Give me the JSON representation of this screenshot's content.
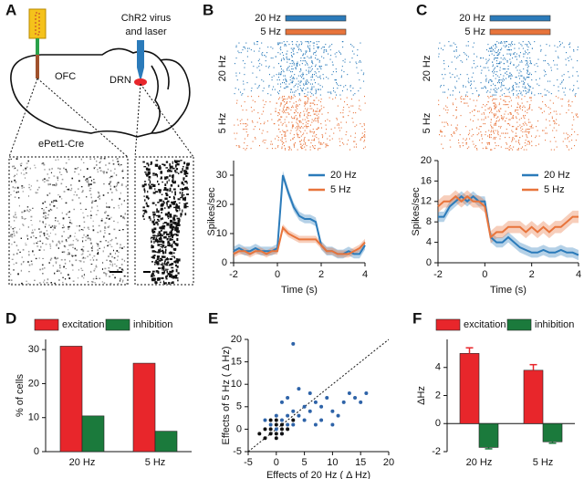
{
  "panel_labels": [
    "A",
    "B",
    "C",
    "D",
    "E",
    "F"
  ],
  "diagram": {
    "probe_label": "OFC",
    "virus_label": [
      "ChR2 virus",
      "and laser"
    ],
    "region_label": "DRN",
    "mouse_line": "ePet1-Cre"
  },
  "chart_data": [
    {
      "type": "line",
      "xlabel": "Time (s)",
      "ylabel": "Spikes/sec",
      "x": [
        -2,
        -1.75,
        -1.5,
        -1.25,
        -1,
        -0.75,
        -0.5,
        -0.25,
        0,
        0.25,
        0.5,
        0.75,
        1,
        1.25,
        1.5,
        1.75,
        2,
        2.25,
        2.5,
        2.75,
        3,
        3.25,
        3.5,
        3.75,
        4
      ],
      "xlim": [
        -2,
        4
      ],
      "xticks": [
        -2,
        0,
        2,
        4
      ],
      "ylim": [
        0,
        35
      ],
      "yticks": [
        0,
        10,
        20,
        30
      ],
      "series": [
        {
          "name": "20 Hz",
          "color": "#2b7bba",
          "error": 1.5,
          "values": [
            4,
            5,
            4,
            4,
            5,
            4,
            4,
            4,
            5,
            30,
            24,
            19,
            16,
            15,
            15,
            14,
            6,
            4,
            4,
            3,
            3,
            4,
            3,
            3,
            6
          ]
        },
        {
          "name": "5 Hz",
          "color": "#e8743b",
          "error": 1.2,
          "values": [
            3,
            4,
            4,
            3,
            4,
            4,
            3,
            4,
            4,
            12,
            10,
            9,
            8,
            8,
            8,
            8,
            6,
            4,
            4,
            3,
            3,
            3,
            4,
            5,
            7
          ]
        }
      ]
    },
    {
      "type": "line",
      "xlabel": "Time (s)",
      "ylabel": "Spikes/sec",
      "x": [
        -2,
        -1.75,
        -1.5,
        -1.25,
        -1,
        -0.75,
        -0.5,
        -0.25,
        0,
        0.25,
        0.5,
        0.75,
        1,
        1.25,
        1.5,
        1.75,
        2,
        2.25,
        2.5,
        2.75,
        3,
        3.25,
        3.5,
        3.75,
        4
      ],
      "xlim": [
        -2,
        4
      ],
      "xticks": [
        -2,
        0,
        2,
        4
      ],
      "ylim": [
        0,
        20
      ],
      "yticks": [
        0,
        4,
        8,
        12,
        16,
        20
      ],
      "series": [
        {
          "name": "20 Hz",
          "color": "#2b7bba",
          "error": 1,
          "values": [
            9,
            9,
            11,
            12,
            13,
            12,
            13,
            12,
            12,
            5,
            4,
            4,
            5,
            4,
            3,
            2.5,
            2,
            2,
            2.5,
            2,
            2,
            2.5,
            2,
            2,
            1.5
          ]
        },
        {
          "name": "5 Hz",
          "color": "#e8743b",
          "error": 1.2,
          "values": [
            11,
            12,
            12,
            13,
            12,
            13,
            12,
            12,
            11,
            5,
            6,
            6,
            7,
            7,
            7,
            6,
            7,
            6,
            7,
            6,
            7,
            7,
            8,
            9,
            9
          ]
        }
      ]
    },
    {
      "type": "bar",
      "ylabel": "% of cells",
      "categories": [
        "20 Hz",
        "5 Hz"
      ],
      "ylim": [
        0,
        33
      ],
      "yticks": [
        0,
        10,
        20,
        30
      ],
      "series": [
        {
          "name": "excitation",
          "color": "#e8262b",
          "values": [
            31,
            26
          ]
        },
        {
          "name": "inhibition",
          "color": "#1b7a3c",
          "values": [
            10.5,
            6
          ]
        }
      ]
    },
    {
      "type": "scatter",
      "xlabel": "Effects of 20 Hz ( Δ Hz)",
      "ylabel": "Effects of 5 Hz ( Δ Hz)",
      "xlim": [
        -5,
        20
      ],
      "xticks": [
        -5,
        0,
        5,
        10,
        15,
        20
      ],
      "ylim": [
        -5,
        20
      ],
      "yticks": [
        -5,
        0,
        5,
        10,
        15,
        20
      ],
      "series": [
        {
          "color": "#2e63a8",
          "x": [
            1,
            2,
            3,
            4,
            5,
            6,
            7,
            8,
            9,
            10,
            11,
            12,
            13,
            14,
            15,
            16,
            3,
            2,
            4,
            6,
            5,
            7,
            0,
            1,
            -1,
            2,
            3,
            8,
            10,
            1,
            -2,
            0
          ],
          "values": [
            2,
            1,
            4,
            3,
            5,
            4,
            6,
            5,
            7,
            4,
            3,
            6,
            8,
            7,
            6,
            8,
            19,
            7,
            9,
            8,
            2,
            1,
            3,
            -1,
            1,
            3,
            1,
            2,
            1,
            6,
            2,
            0
          ]
        },
        {
          "color": "#111111",
          "x": [
            -1,
            0,
            1,
            -2,
            0,
            1,
            -3,
            2,
            -1,
            0,
            -2,
            1,
            3,
            -1,
            0
          ],
          "values": [
            -1,
            1,
            0,
            0,
            -1,
            1,
            -1,
            0,
            0,
            2,
            -2,
            -1,
            2,
            2,
            -2
          ]
        }
      ]
    },
    {
      "type": "bar",
      "ylabel": "ΔHz",
      "categories": [
        "20 Hz",
        "5 Hz"
      ],
      "ylim": [
        -2,
        6
      ],
      "yticks": [
        -2,
        0,
        2,
        4
      ],
      "series": [
        {
          "name": "excitation",
          "color": "#e8262b",
          "values": [
            5,
            3.8
          ],
          "errors": [
            0.4,
            0.4
          ]
        },
        {
          "name": "inhibition",
          "color": "#1b7a3c",
          "values": [
            -1.7,
            -1.3
          ],
          "errors": [
            0.1,
            0.1
          ]
        }
      ]
    }
  ]
}
